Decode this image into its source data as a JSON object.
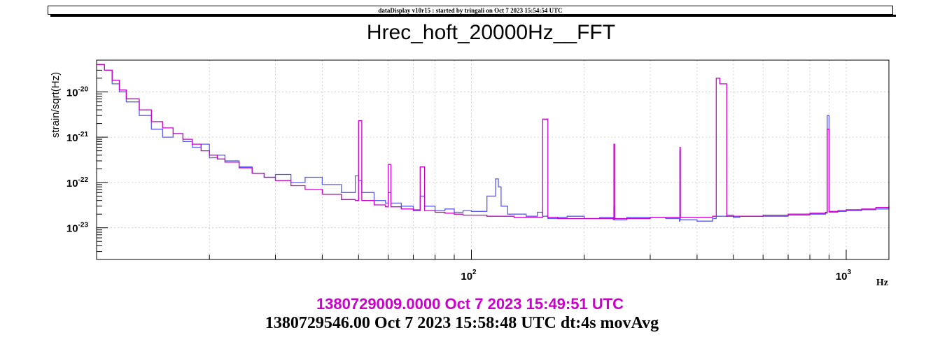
{
  "banner": "dataDisplay v10r15 : started by tringali on Oct  7 2023 15:54:54 UTC",
  "footer": {
    "ref_time": "1380729009.0000 Oct 7 2023 15:49:51 UTC",
    "cur_time": "1380729546.00 Oct 7 2023 15:58:48 UTC dt:4s movAvg"
  },
  "chart_data": {
    "type": "line",
    "title": "Hrec_hoft_20000Hz__FFT",
    "xlabel": "Hz",
    "ylabel": "strain/sqrt(Hz)",
    "x_scale": "log",
    "y_scale": "log",
    "xlim": [
      10,
      1300
    ],
    "ylim": [
      2e-24,
      5e-20
    ],
    "x_tick_labels": [
      {
        "value": 100,
        "base": "10",
        "exp": "2"
      },
      {
        "value": 1000,
        "base": "10",
        "exp": "3"
      }
    ],
    "y_tick_labels": [
      {
        "value": 1e-20,
        "base": "10",
        "exp": "-20"
      },
      {
        "value": 1e-21,
        "base": "10",
        "exp": "-21"
      },
      {
        "value": 1e-22,
        "base": "10",
        "exp": "-22"
      },
      {
        "value": 1e-23,
        "base": "10",
        "exp": "-23"
      }
    ],
    "grid": true,
    "colors": {
      "reference": "#5b5bf0",
      "current": "#cc00cc"
    },
    "series": [
      {
        "role": "reference",
        "color": "#5b5bf0",
        "x": [
          10,
          10.5,
          11,
          11.5,
          12,
          13,
          14,
          15,
          16,
          17,
          18,
          19,
          20,
          21,
          22,
          24,
          26,
          28,
          30,
          33,
          36,
          40,
          45,
          49,
          50,
          51,
          55,
          59,
          60,
          61,
          65,
          70,
          73,
          75,
          80,
          85,
          90,
          95,
          100,
          110,
          116,
          118,
          120,
          125,
          130,
          140,
          150,
          155,
          160,
          170,
          180,
          200,
          220,
          239,
          240,
          241,
          260,
          300,
          330,
          359,
          360,
          361,
          400,
          440,
          450,
          480,
          500,
          520,
          600,
          700,
          800,
          880,
          890,
          900,
          950,
          1000,
          1100,
          1200,
          1300
        ],
        "y": [
          4e-20,
          3e-20,
          1.5e-20,
          1e-20,
          6e-21,
          3e-21,
          1.5e-21,
          1e-21,
          1.2e-21,
          8e-22,
          6e-22,
          7e-22,
          3.5e-22,
          4e-22,
          3e-22,
          2.2e-22,
          1.6e-22,
          1.3e-22,
          1.5e-22,
          1e-22,
          1.3e-22,
          9e-23,
          6e-23,
          1.4e-22,
          1.1e-22,
          6e-23,
          4e-23,
          3.5e-23,
          6e-23,
          3.5e-23,
          3e-23,
          2.5e-23,
          5e-23,
          3e-23,
          2.4e-23,
          2.6e-23,
          2.2e-23,
          2.4e-23,
          2.3e-23,
          5e-23,
          1.2e-22,
          8e-23,
          3e-23,
          2e-23,
          2e-23,
          1.8e-23,
          2.2e-23,
          1.8e-23,
          1.6e-23,
          1.7e-23,
          1.8e-23,
          1.6e-23,
          1.7e-23,
          1.5e-23,
          3e-23,
          1.5e-23,
          1.7e-23,
          1.7e-23,
          1.6e-23,
          1.4e-23,
          5e-22,
          1.5e-23,
          1.4e-23,
          1.6e-23,
          1.8e-23,
          1.9e-23,
          1.7e-23,
          1.8e-23,
          1.8e-23,
          1.9e-23,
          2e-23,
          2.1e-23,
          3e-21,
          2.2e-23,
          2.3e-23,
          2.4e-23,
          2.5e-23,
          2.6e-23,
          2.7e-23
        ]
      },
      {
        "role": "current",
        "color": "#cc00cc",
        "x": [
          10,
          10.5,
          11,
          11.5,
          12,
          13,
          14,
          15,
          16,
          17,
          18,
          19,
          20,
          21,
          22,
          24,
          26,
          28,
          30,
          33,
          36,
          40,
          45,
          49,
          50,
          51,
          55,
          59,
          60,
          61,
          65,
          70,
          73,
          75,
          80,
          85,
          90,
          95,
          100,
          110,
          120,
          130,
          140,
          150,
          155,
          160,
          170,
          180,
          200,
          220,
          239,
          240,
          241,
          260,
          300,
          330,
          359,
          360,
          361,
          400,
          440,
          450,
          460,
          480,
          500,
          520,
          600,
          700,
          800,
          880,
          890,
          900,
          950,
          1000,
          1100,
          1200,
          1300
        ],
        "y": [
          4e-20,
          3e-20,
          1.8e-20,
          1.1e-20,
          7e-21,
          4e-21,
          2.2e-21,
          1.6e-21,
          1.2e-21,
          9e-22,
          7e-22,
          5e-22,
          4e-22,
          3.3e-22,
          2.8e-22,
          2.1e-22,
          1.6e-22,
          1.3e-22,
          1.1e-22,
          8.5e-23,
          7e-23,
          5.5e-23,
          4.2e-23,
          4e-23,
          2.3e-21,
          4e-23,
          3.2e-23,
          2.9e-23,
          2.5e-22,
          2.9e-23,
          2.6e-23,
          2.4e-23,
          2.2e-22,
          2.4e-23,
          2.2e-23,
          2.1e-23,
          2e-23,
          1.9e-23,
          1.9e-23,
          1.8e-23,
          1.8e-23,
          1.7e-23,
          1.7e-23,
          1.7e-23,
          2.5e-21,
          1.7e-23,
          1.6e-23,
          1.6e-23,
          1.6e-23,
          1.6e-23,
          1.6e-23,
          7e-22,
          1.6e-23,
          1.6e-23,
          1.7e-23,
          1.7e-23,
          1.7e-23,
          6e-22,
          1.7e-23,
          1.7e-23,
          1.8e-23,
          2e-20,
          1.5e-20,
          1.8e-23,
          1.8e-23,
          1.8e-23,
          1.9e-23,
          2e-23,
          2.1e-23,
          2.2e-23,
          1.5e-21,
          2.3e-23,
          2.4e-23,
          2.5e-23,
          2.6e-23,
          2.8e-23,
          3e-23
        ]
      }
    ]
  }
}
